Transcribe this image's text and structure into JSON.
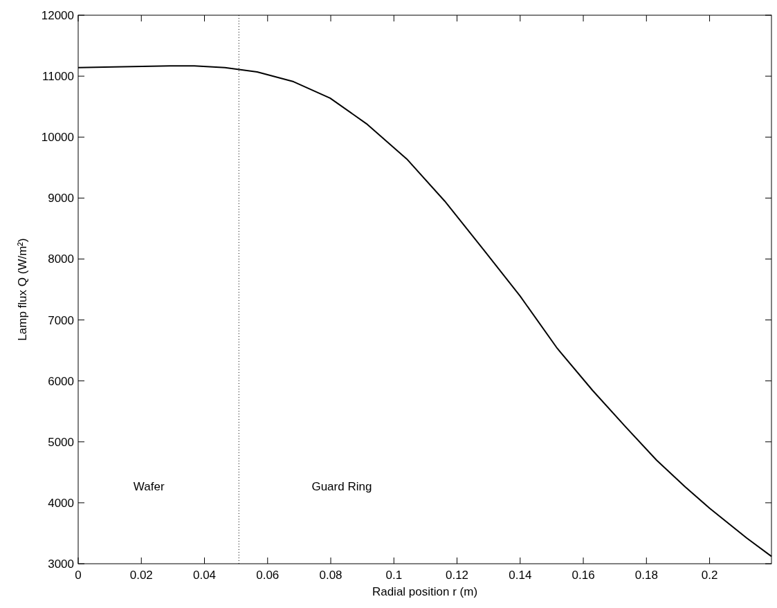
{
  "chart_data": {
    "type": "line",
    "xlabel": "Radial position r (m)",
    "ylabel": "Lamp flux Q (W/m²)",
    "series": [
      {
        "color": "#000000",
        "x": [
          0,
          0.0084,
          0.0291,
          0.0368,
          0.0465,
          0.0567,
          0.0682,
          0.0798,
          0.0913,
          0.1041,
          0.1161,
          0.1286,
          0.14,
          0.1518,
          0.163,
          0.1735,
          0.1832,
          0.1923,
          0.2,
          0.2118,
          0.2196
        ],
        "values": [
          11140,
          11150,
          11170,
          11170,
          11140,
          11070,
          10910,
          10640,
          10220,
          9640,
          8950,
          8140,
          7390,
          6530,
          5840,
          5240,
          4700,
          4260,
          3910,
          3420,
          3120
        ]
      }
    ],
    "xlim": [
      0,
      0.2196
    ],
    "xticks": [
      0,
      0.02,
      0.04,
      0.06,
      0.08,
      0.1,
      0.12,
      0.14,
      0.16,
      0.18,
      0.2
    ],
    "ylim": [
      3000,
      12000
    ],
    "yticks": [
      3000,
      4000,
      5000,
      6000,
      7000,
      8000,
      9000,
      10000,
      11000,
      12000
    ],
    "ref_lines": [
      {
        "axis": "x",
        "value": 0.0509,
        "color": "#000000",
        "line_style": "dotted"
      }
    ],
    "annotations": [
      "Wafer",
      "Guard Ring"
    ],
    "grid": false,
    "marker": "none",
    "line_style": "solid"
  }
}
